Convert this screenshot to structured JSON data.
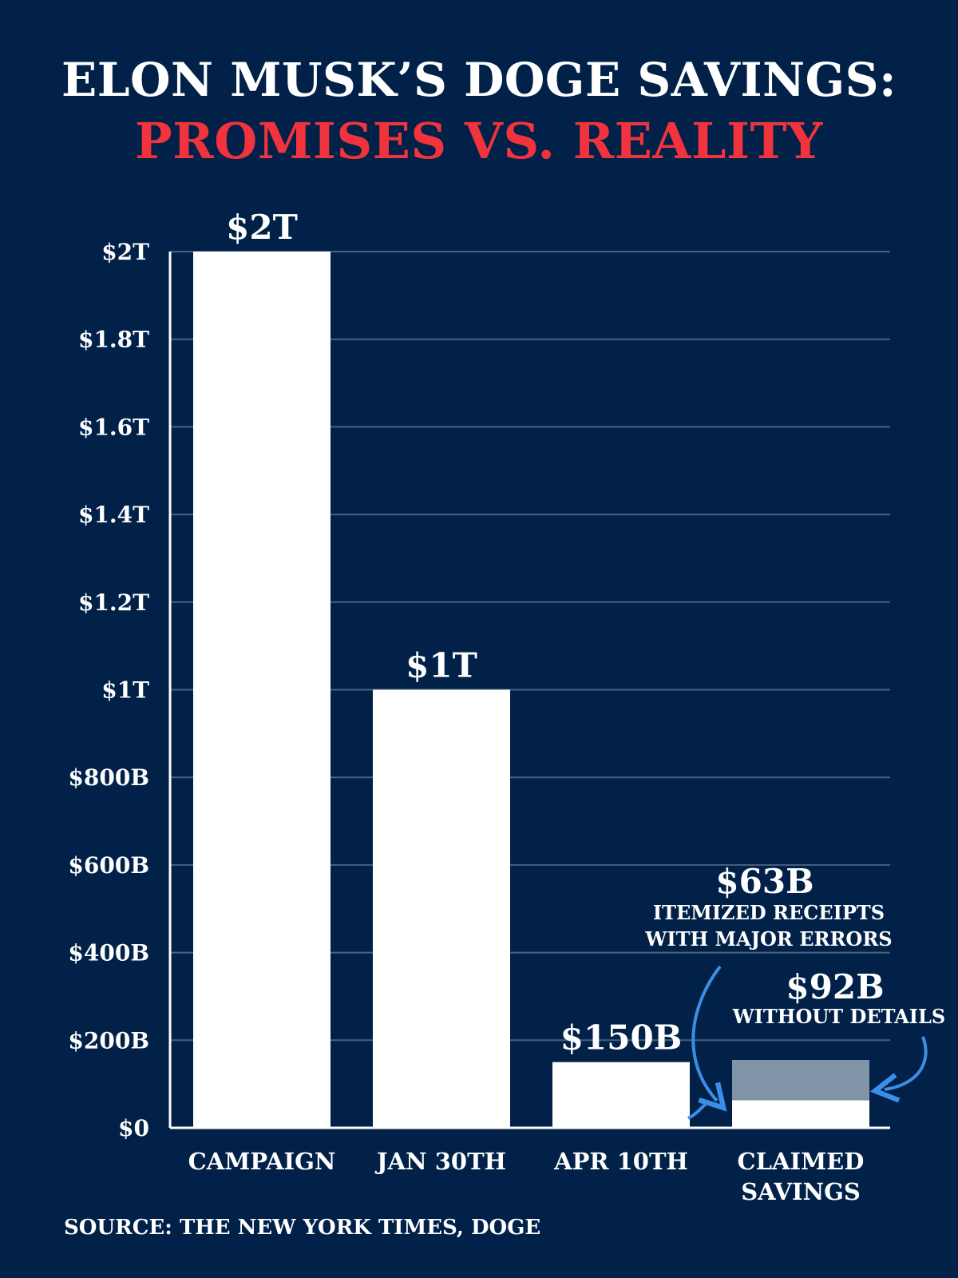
{
  "header": {
    "title_line1": "ELON MUSK’S DOGE SAVINGS:",
    "title_line2": "PROMISES VS. REALITY"
  },
  "footer": {
    "source": "SOURCE: THE NEW YORK TIMES, DOGE"
  },
  "colors": {
    "background": "#012148",
    "title_accent": "#f0333d",
    "bar": "#ffffff",
    "bar_secondary": "#8193a7",
    "gridline": "#4a5f7e",
    "arrow": "#3a8ee6"
  },
  "chart_data": {
    "type": "bar",
    "stacked": true,
    "categories": [
      "CAMPAIGN",
      "JAN 30TH",
      "APR 10TH",
      "CLAIMED SAVINGS"
    ],
    "unit": "billions USD",
    "ylim": [
      0,
      2000
    ],
    "yticks": [
      0,
      200,
      400,
      600,
      800,
      1000,
      1200,
      1400,
      1600,
      1800,
      2000
    ],
    "ytick_labels": [
      "$0",
      "$200B",
      "$400B",
      "$600B",
      "$800B",
      "$1T",
      "$1.2T",
      "$1.4T",
      "$1.6T",
      "$1.8T",
      "$2T"
    ],
    "grid": true,
    "series": [
      {
        "values": [
          2000,
          1000,
          150,
          63
        ],
        "color": "#ffffff",
        "labels": [
          "$2T",
          "$1T",
          "$150B",
          ""
        ]
      },
      {
        "values": [
          0,
          0,
          0,
          92
        ],
        "color": "#8193a7",
        "labels": [
          "",
          "",
          "",
          ""
        ]
      }
    ],
    "annotations": [
      {
        "value": "$63B",
        "text_line1": "ITEMIZED RECEIPTS",
        "text_line2": "WITH MAJOR ERRORS"
      },
      {
        "value": "$92B",
        "text_line1": "WITHOUT DETAILS",
        "text_line2": ""
      }
    ]
  }
}
